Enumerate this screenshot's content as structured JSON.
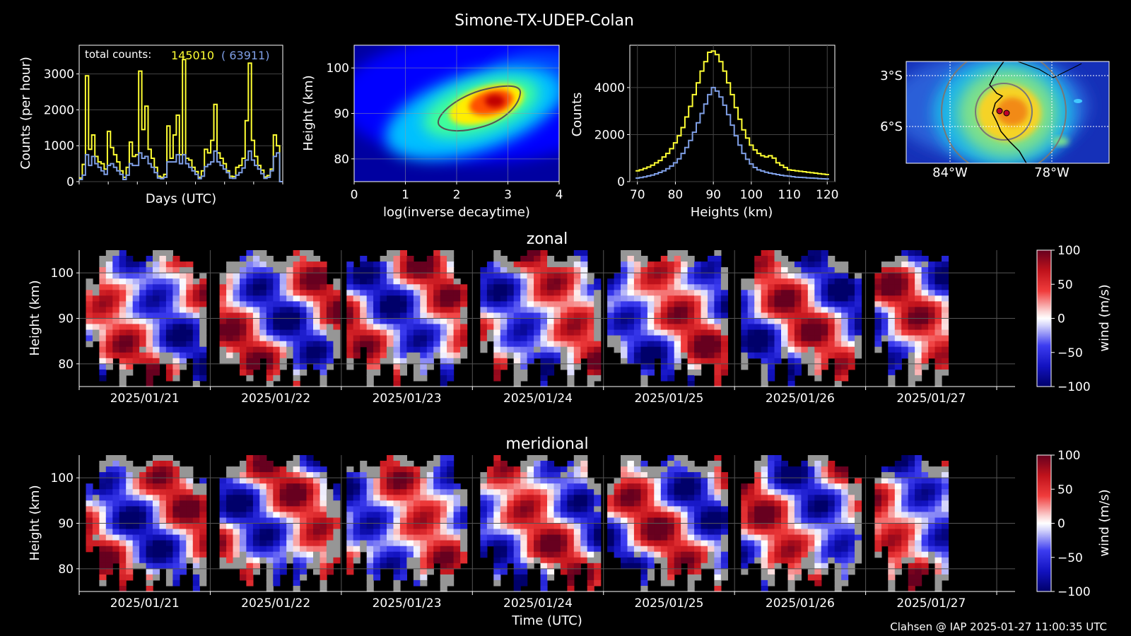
{
  "title": "Simone-TX-UDEP-Colan",
  "footer": "Clahsen @ IAP 2025-01-27 11:00:35 UTC",
  "colors": {
    "all": "#ffff33",
    "used": "#7f9fe6",
    "background": "#000000"
  },
  "chart_data": [
    {
      "type": "line",
      "xlabel": "Days (UTC)",
      "ylabel": "Counts (per hour)",
      "ylim": [
        0,
        3800
      ],
      "yticks": [
        "0",
        "1000",
        "2000",
        "3000"
      ],
      "annotation": {
        "label": "total counts:",
        "total": "145010",
        "used": "( 63911)"
      },
      "series": [
        {
          "values": [
            100,
            480,
            2950,
            900,
            1300,
            700,
            550,
            500,
            350,
            1400,
            950,
            750,
            550,
            300,
            120,
            400,
            1100,
            700,
            750,
            3080,
            1450,
            2100,
            900,
            650,
            400,
            150,
            120,
            200,
            1550,
            650,
            1300,
            1850,
            750,
            3400,
            650,
            600,
            400,
            280,
            120,
            300,
            900,
            800,
            1150,
            2150,
            800,
            650,
            500,
            300,
            150,
            140,
            400,
            450,
            650,
            1700,
            3300,
            1150,
            700,
            450,
            320,
            130,
            170,
            350,
            1300,
            1000,
            0
          ]
        },
        {
          "values": [
            60,
            180,
            750,
            450,
            700,
            500,
            400,
            300,
            200,
            450,
            500,
            400,
            300,
            200,
            60,
            180,
            500,
            450,
            450,
            800,
            650,
            700,
            500,
            400,
            250,
            100,
            80,
            120,
            550,
            550,
            550,
            750,
            500,
            750,
            500,
            400,
            300,
            200,
            80,
            150,
            420,
            480,
            550,
            850,
            550,
            450,
            350,
            250,
            100,
            90,
            180,
            250,
            380,
            600,
            850,
            600,
            450,
            350,
            220,
            90,
            120,
            300,
            700,
            800,
            0
          ]
        }
      ]
    },
    {
      "type": "heatmap",
      "xlabel": "log(inverse decaytime)",
      "ylabel": "Height (km)",
      "xlim": [
        0,
        4
      ],
      "ylim": [
        75,
        105
      ],
      "xticks": [
        "0",
        "1",
        "2",
        "3",
        "4"
      ],
      "yticks": [
        "80",
        "90",
        "100"
      ],
      "peak": {
        "x": 2.75,
        "y": 92
      }
    },
    {
      "type": "line",
      "xlabel": "Heights (km)",
      "ylabel": "Counts",
      "xlim": [
        68,
        122
      ],
      "ylim": [
        0,
        5800
      ],
      "xticks": [
        "70",
        "80",
        "90",
        "100",
        "110",
        "120"
      ],
      "yticks": [
        "0",
        "2000",
        "4000"
      ],
      "x": [
        70,
        71,
        72,
        73,
        74,
        75,
        76,
        77,
        78,
        79,
        80,
        81,
        82,
        83,
        84,
        85,
        86,
        87,
        88,
        89,
        90,
        91,
        92,
        93,
        94,
        95,
        96,
        97,
        98,
        99,
        100,
        101,
        102,
        103,
        104,
        105,
        106,
        107,
        108,
        109,
        110,
        111,
        112,
        113,
        114,
        115,
        116,
        117,
        118,
        119,
        120
      ],
      "series": [
        {
          "values": [
            460,
            500,
            560,
            620,
            700,
            800,
            900,
            1050,
            1200,
            1400,
            1650,
            1950,
            2300,
            2750,
            3200,
            3700,
            4200,
            4700,
            5100,
            5500,
            5550,
            5400,
            5100,
            4700,
            4200,
            3700,
            3150,
            2650,
            2200,
            1850,
            1550,
            1350,
            1200,
            1100,
            1050,
            1100,
            1000,
            800,
            700,
            600,
            500,
            480,
            460,
            440,
            420,
            400,
            380,
            360,
            340,
            320,
            300
          ]
        },
        {
          "values": [
            150,
            170,
            200,
            240,
            280,
            330,
            390,
            460,
            550,
            660,
            800,
            970,
            1200,
            1450,
            1750,
            2100,
            2500,
            2900,
            3300,
            3700,
            4000,
            3850,
            3600,
            3250,
            2850,
            2400,
            1950,
            1550,
            1200,
            950,
            750,
            600,
            500,
            450,
            400,
            360,
            330,
            300,
            270,
            250,
            230,
            210,
            190,
            180,
            170,
            160,
            150,
            140,
            130,
            120,
            110
          ]
        }
      ]
    },
    {
      "type": "heatmap",
      "label": "map",
      "yticks": [
        "3°S",
        "6°S"
      ],
      "xticks": [
        "84°W",
        "78°W"
      ]
    },
    {
      "type": "heatmap",
      "title": "zonal",
      "ylabel": "Height (km)",
      "ylim": [
        75,
        105
      ],
      "yticks": [
        "80",
        "90",
        "100"
      ],
      "xticks": [
        "2025/01/21",
        "2025/01/22",
        "2025/01/23",
        "2025/01/24",
        "2025/01/25",
        "2025/01/26",
        "2025/01/27"
      ],
      "colorbar": {
        "label": "wind (m/s)",
        "ticks": [
          "100",
          "50",
          "0",
          "−50",
          "−100"
        ],
        "range": [
          -100,
          100
        ]
      }
    },
    {
      "type": "heatmap",
      "title": "meridional",
      "ylabel": "Height (km)",
      "xlabel": "Time (UTC)",
      "ylim": [
        75,
        105
      ],
      "yticks": [
        "80",
        "90",
        "100"
      ],
      "xticks": [
        "2025/01/21",
        "2025/01/22",
        "2025/01/23",
        "2025/01/24",
        "2025/01/25",
        "2025/01/26",
        "2025/01/27"
      ],
      "colorbar": {
        "label": "wind (m/s)",
        "ticks": [
          "100",
          "50",
          "0",
          "−50",
          "−100"
        ],
        "range": [
          -100,
          100
        ]
      }
    }
  ]
}
